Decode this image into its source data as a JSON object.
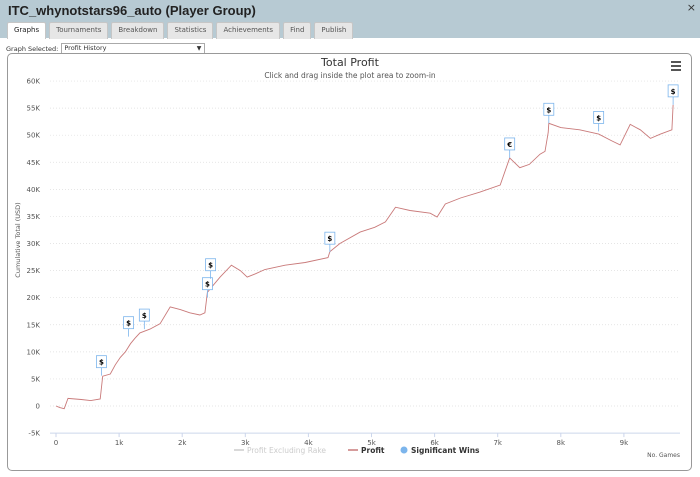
{
  "window": {
    "title": "ITC_whynotstars96_auto (Player Group)",
    "close": "×"
  },
  "tabs": [
    {
      "label": "Graphs",
      "active": true
    },
    {
      "label": "Tournaments"
    },
    {
      "label": "Breakdown"
    },
    {
      "label": "Statistics"
    },
    {
      "label": "Achievements"
    },
    {
      "label": "Find"
    },
    {
      "label": "Publish"
    }
  ],
  "graph_select": {
    "label": "Graph Selected:",
    "value": "Profit History"
  },
  "chart_data": {
    "type": "line",
    "title": "Total Profit",
    "subtitle": "Click and drag inside the plot area to zoom-in",
    "xlabel": "No. Games",
    "ylabel": "Cumulative Total (USD)",
    "xlim": [
      0,
      9850
    ],
    "ylim": [
      -5000,
      60000
    ],
    "x_ticks": [
      "0",
      "1k",
      "2k",
      "3k",
      "4k",
      "5k",
      "6k",
      "7k",
      "8k",
      "9k"
    ],
    "y_ticks": [
      "-5K",
      "0",
      "5K",
      "10K",
      "15K",
      "20K",
      "25K",
      "30K",
      "35K",
      "40K",
      "45K",
      "50K",
      "55K",
      "60K"
    ],
    "grid": true,
    "legend": {
      "placement": "bottom",
      "items": [
        "Profit Excluding Rake",
        "Profit",
        "Significant Wins"
      ]
    },
    "colors": {
      "profit": "#c97a7a",
      "wins": "#7cb5ec",
      "excl_rake": "#cccccc"
    },
    "series": [
      {
        "name": "Profit",
        "points": [
          [
            0,
            0
          ],
          [
            60,
            -300
          ],
          [
            130,
            -500
          ],
          [
            190,
            1400
          ],
          [
            400,
            1200
          ],
          [
            550,
            1000
          ],
          [
            700,
            1300
          ],
          [
            740,
            5500
          ],
          [
            860,
            5900
          ],
          [
            940,
            7600
          ],
          [
            1020,
            9000
          ],
          [
            1100,
            10000
          ],
          [
            1180,
            11500
          ],
          [
            1250,
            12500
          ],
          [
            1330,
            13500
          ],
          [
            1490,
            14200
          ],
          [
            1650,
            15200
          ],
          [
            1810,
            18300
          ],
          [
            1970,
            17800
          ],
          [
            2120,
            17200
          ],
          [
            2280,
            16800
          ],
          [
            2360,
            17200
          ],
          [
            2400,
            21000
          ],
          [
            2470,
            22000
          ],
          [
            2600,
            23800
          ],
          [
            2780,
            26000
          ],
          [
            2920,
            25000
          ],
          [
            3030,
            23800
          ],
          [
            3160,
            24400
          ],
          [
            3310,
            25200
          ],
          [
            3630,
            26000
          ],
          [
            3950,
            26500
          ],
          [
            4310,
            27400
          ],
          [
            4340,
            28500
          ],
          [
            4500,
            30000
          ],
          [
            4820,
            32100
          ],
          [
            5050,
            33000
          ],
          [
            5220,
            34000
          ],
          [
            5380,
            36700
          ],
          [
            5610,
            36100
          ],
          [
            5930,
            35600
          ],
          [
            6040,
            34900
          ],
          [
            6170,
            37300
          ],
          [
            6410,
            38400
          ],
          [
            6720,
            39500
          ],
          [
            7040,
            40800
          ],
          [
            7190,
            45800
          ],
          [
            7350,
            44000
          ],
          [
            7500,
            44600
          ],
          [
            7670,
            46500
          ],
          [
            7750,
            47000
          ],
          [
            7800,
            50500
          ],
          [
            7810,
            52200
          ],
          [
            8000,
            51400
          ],
          [
            8300,
            51000
          ],
          [
            8600,
            50200
          ],
          [
            8800,
            49000
          ],
          [
            8940,
            48200
          ],
          [
            9100,
            52000
          ],
          [
            9260,
            51000
          ],
          [
            9420,
            49400
          ],
          [
            9580,
            50200
          ],
          [
            9760,
            51000
          ],
          [
            9780,
            55600
          ]
        ]
      }
    ],
    "significant_wins": [
      {
        "x": 720,
        "y": 5600,
        "label": "$"
      },
      {
        "x": 1150,
        "y": 12800,
        "label": "$"
      },
      {
        "x": 1400,
        "y": 14200,
        "label": "$"
      },
      {
        "x": 2400,
        "y": 20000,
        "label": "$"
      },
      {
        "x": 2450,
        "y": 23500,
        "label": "$"
      },
      {
        "x": 4340,
        "y": 28400,
        "label": "$"
      },
      {
        "x": 7190,
        "y": 45800,
        "label": "€"
      },
      {
        "x": 7810,
        "y": 52200,
        "label": "$"
      },
      {
        "x": 8600,
        "y": 50700,
        "label": "$"
      },
      {
        "x": 9780,
        "y": 55600,
        "label": "$"
      }
    ]
  }
}
